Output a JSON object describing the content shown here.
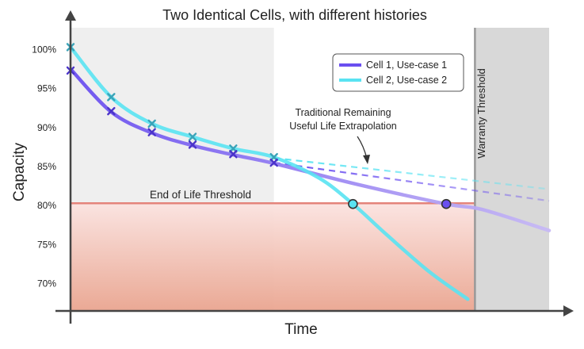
{
  "chart_data": {
    "type": "line",
    "title": "Two Identical Cells, with different histories",
    "xlabel": "Time",
    "ylabel": "Capacity",
    "ylim": [
      66.5,
      104
    ],
    "xlim": [
      0,
      100
    ],
    "y_ticks": [
      "100%",
      "95%",
      "90%",
      "85%",
      "80%",
      "75%",
      "70%"
    ],
    "y_tick_values": [
      100,
      95,
      90,
      85,
      80,
      75,
      70
    ],
    "grid": false,
    "legend_position": "top-right",
    "colors": {
      "cell1": "#6a4ff0",
      "cell2": "#59e3f2",
      "cell1_fade": "#c7b9f5",
      "cell2_fade": "#cdeff7",
      "eol_line": "#e4847b",
      "eol_fill_top": "#fbe0dd",
      "eol_fill_bottom": "#eda893",
      "history_bg": "#efefef",
      "warranty_bg": "#d8d8d8",
      "warranty_line": "#999999"
    },
    "series": [
      {
        "name": "Cell 1, Use-case 1",
        "x": [
          0,
          8.5,
          17,
          25.5,
          34,
          42.5,
          60,
          78.5,
          86,
          100
        ],
        "values": [
          97.5,
          92,
          89.3,
          87.7,
          86.5,
          85.4,
          82.7,
          80.2,
          79.5,
          76.8
        ],
        "markers_x": [
          0,
          8.5,
          17,
          25.5,
          34,
          42.5
        ],
        "markers_y": [
          97.3,
          92.1,
          89.4,
          87.8,
          86.6,
          85.5
        ],
        "eol_point": [
          78.5,
          80.2
        ]
      },
      {
        "name": "Cell 2, Use-case 2",
        "x": [
          0,
          8.5,
          17,
          25.5,
          34,
          42.5,
          52,
          59,
          66,
          75,
          83
        ],
        "values": [
          100.3,
          93.9,
          90.5,
          88.8,
          87.3,
          86.2,
          83.5,
          80.2,
          76.3,
          71.5,
          68.0
        ],
        "markers_x": [
          0,
          8.5,
          17,
          25.5,
          34,
          42.5
        ],
        "markers_y": [
          100.3,
          93.9,
          90.5,
          88.8,
          87.3,
          86.2
        ],
        "eol_point": [
          59,
          80.2
        ]
      }
    ],
    "extrapolations": [
      {
        "series": "Cell 1, Use-case 1",
        "x": [
          42.5,
          100
        ],
        "values": [
          85.5,
          80.6
        ]
      },
      {
        "series": "Cell 2, Use-case 2",
        "x": [
          42.5,
          100
        ],
        "values": [
          86.1,
          82.1
        ]
      }
    ],
    "eol_threshold": 80.3,
    "eol_label": "End of Life Threshold",
    "history_end_x": 42.5,
    "warranty_x": 84.5,
    "warranty_label": "Warranty Threshold",
    "annotation": {
      "line1": "Traditional Remaining",
      "line2": "Useful Life Extrapolation"
    }
  }
}
